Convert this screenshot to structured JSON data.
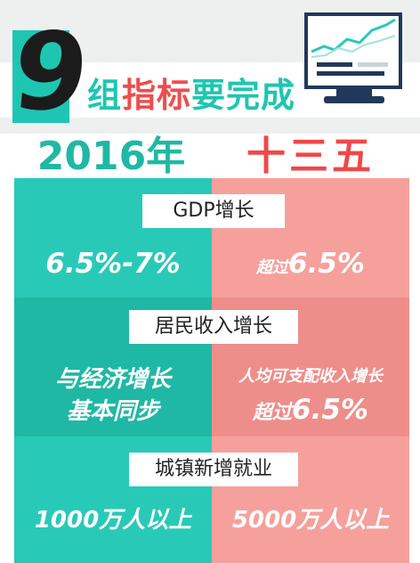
{
  "header": {
    "number": "9",
    "headline_part1": "组",
    "headline_part2": "指标",
    "headline_part3": "要完成"
  },
  "columns": {
    "left_title": "2016年",
    "right_title": "十三五"
  },
  "indicators": [
    {
      "label": "GDP增长",
      "left": "6.5%-7%",
      "right_prefix": "超过",
      "right_value": "6.5%"
    },
    {
      "label": "居民收入增长",
      "left_line1": "与经济增长",
      "left_line2": "基本同步",
      "right_line1": "人均可支配收入增长",
      "right_prefix": "超过",
      "right_value": "6.5%"
    },
    {
      "label": "城镇新增就业",
      "left": "1000万人以上",
      "right": "5000万人以上"
    }
  ],
  "colors": {
    "teal": "#29c9b8",
    "teal_dark": "#1fb8a5",
    "salmon": "#f6a09c",
    "salmon_dark": "#ee8e8a",
    "red": "#f04848",
    "navy": "#21385a"
  }
}
